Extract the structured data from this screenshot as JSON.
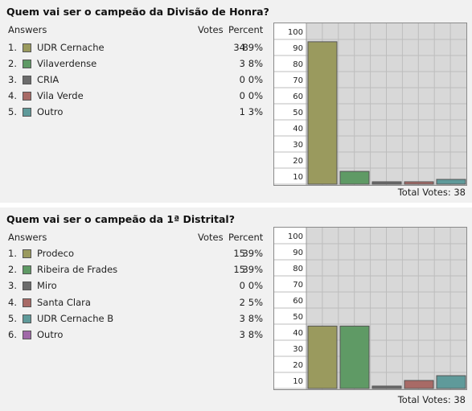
{
  "polls": [
    {
      "title": "Quem vai ser o campeão da Divisão de Honra?",
      "header": {
        "answers": "Answers",
        "votes": "Votes",
        "percent": "Percent"
      },
      "answers": [
        {
          "num": "1.",
          "label": "UDR Cernache",
          "votes": "34",
          "percent": "89%",
          "color": "#9a9a5e"
        },
        {
          "num": "2.",
          "label": "Vilaverdense",
          "votes": "3",
          "percent": "8%",
          "color": "#5f9a65"
        },
        {
          "num": "3.",
          "label": "CRIA",
          "votes": "0",
          "percent": "0%",
          "color": "#6c6c6c"
        },
        {
          "num": "4.",
          "label": "Vila Verde",
          "votes": "0",
          "percent": "0%",
          "color": "#a86a66"
        },
        {
          "num": "5.",
          "label": "Outro",
          "votes": "1",
          "percent": "3%",
          "color": "#5f9a9a"
        }
      ],
      "total_label": "Total Votes: 38"
    },
    {
      "title": "Quem vai ser o campeão da 1ª Distrital?",
      "header": {
        "answers": "Answers",
        "votes": "Votes",
        "percent": "Percent"
      },
      "answers": [
        {
          "num": "1.",
          "label": "Prodeco",
          "votes": "15",
          "percent": "39%",
          "color": "#9a9a5e"
        },
        {
          "num": "2.",
          "label": "Ribeira de Frades",
          "votes": "15",
          "percent": "39%",
          "color": "#5f9a65"
        },
        {
          "num": "3.",
          "label": "Miro",
          "votes": "0",
          "percent": "0%",
          "color": "#6c6c6c"
        },
        {
          "num": "4.",
          "label": "Santa Clara",
          "votes": "2",
          "percent": "5%",
          "color": "#a86a66"
        },
        {
          "num": "5.",
          "label": "UDR Cernache B",
          "votes": "3",
          "percent": "8%",
          "color": "#5f9a9a"
        },
        {
          "num": "6.",
          "label": "Outro",
          "votes": "3",
          "percent": "8%",
          "color": "#a068a8"
        }
      ],
      "total_label": "Total Votes: 38"
    }
  ],
  "chart_data": [
    {
      "type": "bar",
      "categories": [
        "UDR Cernache",
        "Vilaverdense",
        "CRIA",
        "Vila Verde",
        "Outro"
      ],
      "values": [
        89,
        8,
        0,
        0,
        3
      ],
      "yticks": [
        10,
        20,
        30,
        40,
        50,
        60,
        70,
        80,
        90,
        100
      ],
      "ylim": [
        0,
        100
      ],
      "colors": [
        "#9a9a5e",
        "#5f9a65",
        "#6c6c6c",
        "#a86a66",
        "#5f9a9a"
      ],
      "grid": true
    },
    {
      "type": "bar",
      "categories": [
        "Prodeco",
        "Ribeira de Frades",
        "Miro",
        "Santa Clara",
        "UDR Cernache B",
        "Outro"
      ],
      "values": [
        39,
        39,
        0,
        5,
        8,
        8
      ],
      "yticks": [
        10,
        20,
        30,
        40,
        50,
        60,
        70,
        80,
        90,
        100
      ],
      "ylim": [
        0,
        100
      ],
      "colors": [
        "#9a9a5e",
        "#5f9a65",
        "#6c6c6c",
        "#a86a66",
        "#5f9a9a",
        "#a068a8"
      ],
      "grid": true
    }
  ]
}
